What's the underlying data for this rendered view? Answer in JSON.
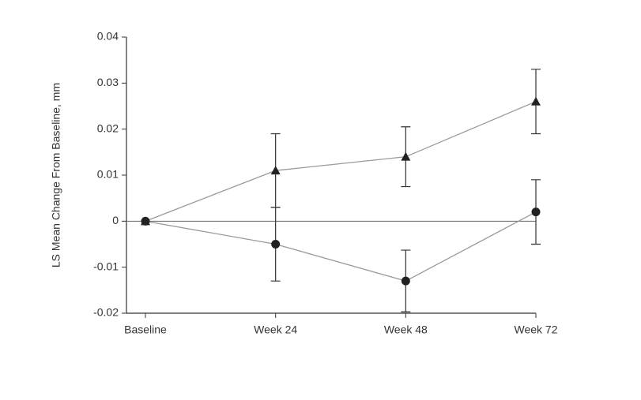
{
  "chart_data": {
    "type": "line",
    "ylabel": "LS Mean Change From Baseline, mm",
    "categories": [
      "Baseline",
      "Week 24",
      "Week 48",
      "Week 72"
    ],
    "series": [
      {
        "marker": "triangle",
        "color": "#222222",
        "values": [
          0,
          0.011,
          0.014,
          0.026
        ],
        "errors": [
          null,
          0.008,
          0.0065,
          0.007
        ]
      },
      {
        "marker": "circle",
        "color": "#222222",
        "values": [
          0,
          -0.005,
          -0.013,
          0.002
        ],
        "errors": [
          null,
          0.008,
          0.0067,
          0.007
        ]
      }
    ],
    "ylim": [
      -0.02,
      0.04
    ],
    "yticks": [
      -0.02,
      -0.01,
      0,
      0.01,
      0.02,
      0.03,
      0.04
    ],
    "zero_line": true
  }
}
